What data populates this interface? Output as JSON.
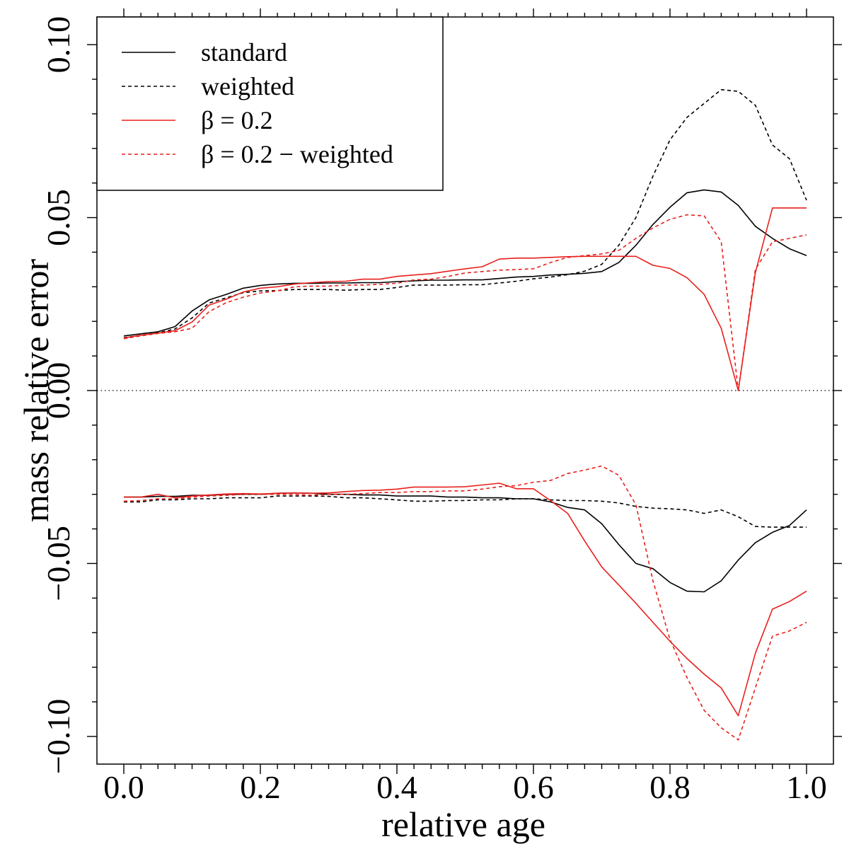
{
  "chart_data": {
    "type": "line",
    "xlabel": "relative age",
    "ylabel": "mass relative error",
    "xlim": [
      0.0,
      1.0
    ],
    "ylim": [
      -0.108,
      0.108
    ],
    "x_tick_labels": [
      "0.0",
      "0.2",
      "0.4",
      "0.6",
      "0.8",
      "1.0"
    ],
    "y_tick_labels": [
      "−0.10",
      "−0.05",
      "0.00",
      "0.05",
      "0.10"
    ],
    "zero_line": true,
    "legend_position": "top-left",
    "legend": [
      {
        "label": "standard",
        "color": "#000000",
        "dash": "solid"
      },
      {
        "label": "weighted",
        "color": "#000000",
        "dash": "dashed"
      },
      {
        "label": "β  = 0.2",
        "color": "#e8201c",
        "dash": "solid"
      },
      {
        "label": "β  = 0.2 − weighted",
        "color": "#e8201c",
        "dash": "dashed"
      }
    ],
    "x": [
      0.0,
      0.025,
      0.05,
      0.075,
      0.1,
      0.125,
      0.15,
      0.175,
      0.2,
      0.225,
      0.25,
      0.275,
      0.3,
      0.325,
      0.35,
      0.375,
      0.4,
      0.425,
      0.45,
      0.475,
      0.5,
      0.525,
      0.55,
      0.575,
      0.6,
      0.625,
      0.65,
      0.675,
      0.7,
      0.725,
      0.75,
      0.775,
      0.8,
      0.825,
      0.85,
      0.875,
      0.9,
      0.925,
      0.95,
      0.975,
      1.0
    ],
    "series": [
      {
        "name": "standard upper",
        "legend_index": 0,
        "values": [
          0.0158,
          0.0164,
          0.017,
          0.0185,
          0.023,
          0.0262,
          0.0278,
          0.0296,
          0.0304,
          0.0308,
          0.031,
          0.031,
          0.0311,
          0.0311,
          0.0312,
          0.0312,
          0.0315,
          0.0317,
          0.0319,
          0.0319,
          0.032,
          0.032,
          0.0324,
          0.0328,
          0.033,
          0.0334,
          0.0336,
          0.0339,
          0.0344,
          0.037,
          0.042,
          0.048,
          0.053,
          0.0572,
          0.058,
          0.0574,
          0.0535,
          0.0475,
          0.044,
          0.041,
          0.039
        ]
      },
      {
        "name": "weighted upper",
        "legend_index": 1,
        "values": [
          0.0153,
          0.016,
          0.0167,
          0.0178,
          0.021,
          0.0253,
          0.0268,
          0.0283,
          0.0288,
          0.0289,
          0.0292,
          0.0292,
          0.0292,
          0.029,
          0.0292,
          0.0292,
          0.0298,
          0.0305,
          0.0305,
          0.0305,
          0.0306,
          0.0306,
          0.0311,
          0.0316,
          0.0323,
          0.0328,
          0.0335,
          0.0345,
          0.0365,
          0.042,
          0.05,
          0.062,
          0.0725,
          0.079,
          0.083,
          0.087,
          0.0865,
          0.0825,
          0.071,
          0.067,
          0.055
        ]
      },
      {
        "name": "beta=0.2 upper",
        "legend_index": 2,
        "values": [
          0.0152,
          0.016,
          0.0166,
          0.0173,
          0.0198,
          0.0247,
          0.0264,
          0.0285,
          0.0296,
          0.03,
          0.0308,
          0.0312,
          0.0315,
          0.0316,
          0.0322,
          0.0322,
          0.033,
          0.0334,
          0.0338,
          0.0345,
          0.0352,
          0.0358,
          0.038,
          0.0383,
          0.0383,
          0.0385,
          0.0387,
          0.0388,
          0.0388,
          0.0388,
          0.0388,
          0.0362,
          0.0353,
          0.0326,
          0.0278,
          0.018,
          0.0,
          0.034,
          0.0528,
          0.0528,
          0.0528
        ]
      },
      {
        "name": "beta=0.2 weighted upper",
        "legend_index": 3,
        "values": [
          0.015,
          0.0158,
          0.0165,
          0.017,
          0.018,
          0.0228,
          0.0254,
          0.027,
          0.0282,
          0.0288,
          0.03,
          0.0302,
          0.0302,
          0.0305,
          0.0305,
          0.0307,
          0.031,
          0.032,
          0.0322,
          0.033,
          0.034,
          0.0344,
          0.0348,
          0.035,
          0.0352,
          0.037,
          0.0385,
          0.039,
          0.0395,
          0.0405,
          0.044,
          0.047,
          0.0495,
          0.0508,
          0.0505,
          0.043,
          0.0,
          0.035,
          0.043,
          0.044,
          0.045
        ]
      },
      {
        "name": "standard lower",
        "legend_index": 0,
        "values": [
          -0.0308,
          -0.0308,
          -0.0306,
          -0.0306,
          -0.0303,
          -0.0303,
          -0.03,
          -0.03,
          -0.03,
          -0.0297,
          -0.0296,
          -0.0297,
          -0.03,
          -0.03,
          -0.0302,
          -0.0302,
          -0.0305,
          -0.0305,
          -0.0305,
          -0.0308,
          -0.0308,
          -0.031,
          -0.031,
          -0.0313,
          -0.0313,
          -0.0322,
          -0.0338,
          -0.0345,
          -0.0385,
          -0.0445,
          -0.05,
          -0.0515,
          -0.0555,
          -0.058,
          -0.0582,
          -0.055,
          -0.049,
          -0.044,
          -0.041,
          -0.039,
          -0.0345
        ]
      },
      {
        "name": "weighted lower",
        "legend_index": 1,
        "values": [
          -0.0322,
          -0.0322,
          -0.0316,
          -0.0316,
          -0.0313,
          -0.0313,
          -0.031,
          -0.031,
          -0.031,
          -0.0305,
          -0.0305,
          -0.0305,
          -0.0306,
          -0.031,
          -0.031,
          -0.0313,
          -0.0316,
          -0.032,
          -0.032,
          -0.0318,
          -0.0318,
          -0.0316,
          -0.0316,
          -0.0313,
          -0.0313,
          -0.0316,
          -0.0318,
          -0.0318,
          -0.032,
          -0.0325,
          -0.0335,
          -0.034,
          -0.0342,
          -0.0345,
          -0.0355,
          -0.0345,
          -0.0365,
          -0.0393,
          -0.0395,
          -0.0395,
          -0.0395
        ]
      },
      {
        "name": "beta=0.2 lower",
        "legend_index": 2,
        "values": [
          -0.0308,
          -0.0308,
          -0.03,
          -0.031,
          -0.0305,
          -0.0302,
          -0.0299,
          -0.0298,
          -0.0299,
          -0.0297,
          -0.0296,
          -0.0297,
          -0.0296,
          -0.0292,
          -0.0289,
          -0.0288,
          -0.0285,
          -0.0279,
          -0.0279,
          -0.0279,
          -0.0278,
          -0.0273,
          -0.0268,
          -0.0284,
          -0.0284,
          -0.0318,
          -0.0355,
          -0.0435,
          -0.051,
          -0.0562,
          -0.0615,
          -0.067,
          -0.0725,
          -0.0775,
          -0.082,
          -0.086,
          -0.094,
          -0.076,
          -0.0632,
          -0.061,
          -0.058
        ]
      },
      {
        "name": "beta=0.2 weighted lower",
        "legend_index": 3,
        "values": [
          -0.032,
          -0.0318,
          -0.0313,
          -0.0313,
          -0.0308,
          -0.0305,
          -0.0303,
          -0.03,
          -0.03,
          -0.03,
          -0.03,
          -0.0303,
          -0.03,
          -0.03,
          -0.0298,
          -0.0295,
          -0.0295,
          -0.0292,
          -0.0292,
          -0.029,
          -0.029,
          -0.0285,
          -0.0278,
          -0.0275,
          -0.0265,
          -0.026,
          -0.024,
          -0.023,
          -0.0218,
          -0.0245,
          -0.033,
          -0.055,
          -0.072,
          -0.083,
          -0.0925,
          -0.0975,
          -0.101,
          -0.086,
          -0.071,
          -0.0695,
          -0.067
        ]
      }
    ]
  }
}
